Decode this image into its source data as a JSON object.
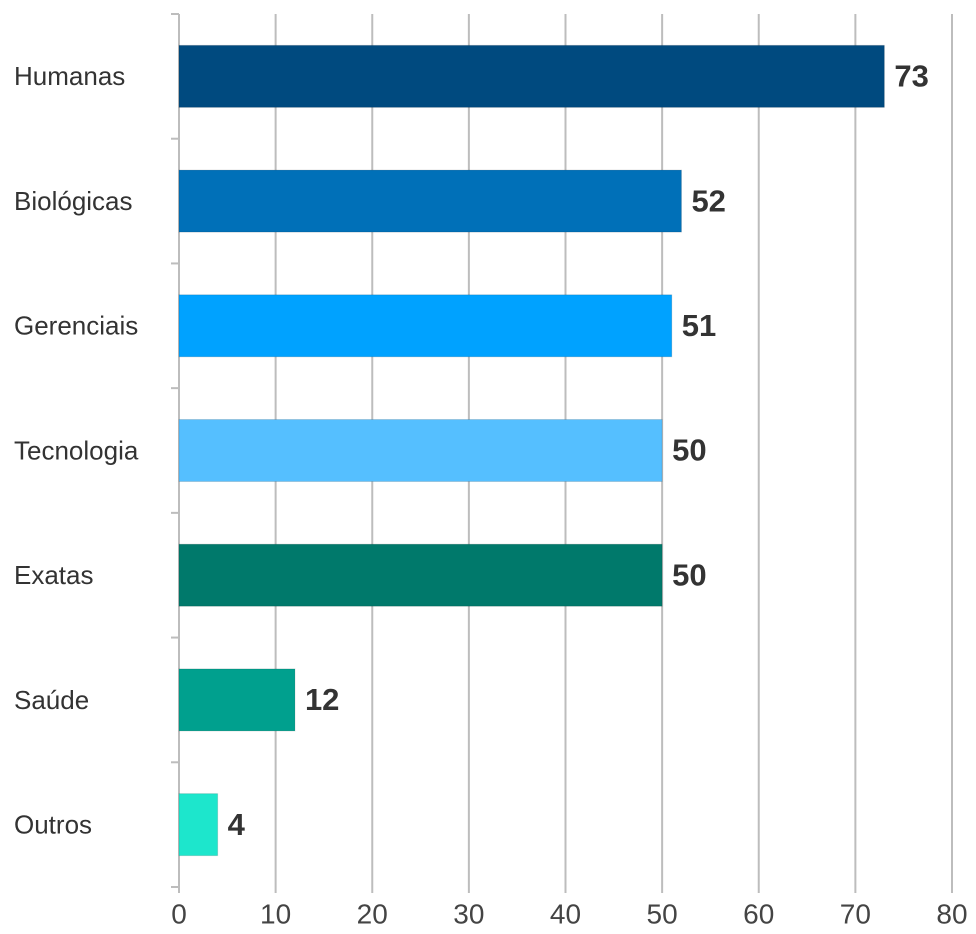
{
  "chart_data": {
    "type": "hbar",
    "categories": [
      "Humanas",
      "Biológicas",
      "Gerenciais",
      "Tecnologia",
      "Exatas",
      "Saúde",
      "Outros"
    ],
    "values": [
      73,
      52,
      51,
      50,
      50,
      12,
      4
    ],
    "colors": [
      "#004a7f",
      "#0070b8",
      "#00a2ff",
      "#55bfff",
      "#00796b",
      "#00a08e",
      "#1de6cc"
    ],
    "xlim": [
      0,
      80
    ],
    "xticks": [
      0,
      10,
      20,
      30,
      40,
      50,
      60,
      70,
      80
    ],
    "grid": true
  }
}
